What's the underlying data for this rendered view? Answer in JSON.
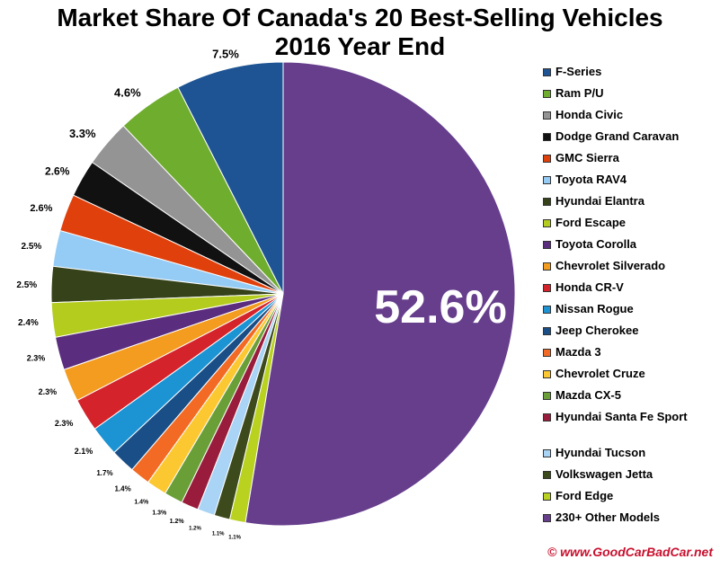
{
  "chart_data": {
    "type": "pie",
    "title": [
      "Market Share Of Canada's 20 Best-Selling Vehicles",
      "2016 Year End"
    ],
    "legend_position": "right",
    "slices": [
      {
        "name": "F-Series",
        "value": 7.5,
        "label": "7.5%",
        "color": "#1f5494"
      },
      {
        "name": "Ram P/U",
        "value": 4.6,
        "label": "4.6%",
        "color": "#6fad2e"
      },
      {
        "name": "Honda Civic",
        "value": 3.3,
        "label": "3.3%",
        "color": "#949494"
      },
      {
        "name": "Dodge Grand Caravan",
        "value": 2.6,
        "label": "2.6%",
        "color": "#111111"
      },
      {
        "name": "GMC Sierra",
        "value": 2.6,
        "label": "2.6%",
        "color": "#e0410c"
      },
      {
        "name": "Toyota RAV4",
        "value": 2.5,
        "label": "2.5%",
        "color": "#95ccf5"
      },
      {
        "name": "Hyundai Elantra",
        "value": 2.5,
        "label": "2.5%",
        "color": "#35421a"
      },
      {
        "name": "Ford Escape",
        "value": 2.4,
        "label": "2.4%",
        "color": "#b4cc1e"
      },
      {
        "name": "Toyota Corolla",
        "value": 2.3,
        "label": "2.3%",
        "color": "#5a2d7e"
      },
      {
        "name": "Chevrolet Silverado",
        "value": 2.3,
        "label": "2.3%",
        "color": "#f39c1f"
      },
      {
        "name": "Honda CR-V",
        "value": 2.3,
        "label": "2.3%",
        "color": "#d4232b"
      },
      {
        "name": "Nissan Rogue",
        "value": 2.1,
        "label": "2.1%",
        "color": "#1c93d3"
      },
      {
        "name": "Jeep Cherokee",
        "value": 1.7,
        "label": "1.7%",
        "color": "#1a4e86"
      },
      {
        "name": "Mazda 3",
        "value": 1.4,
        "label": "1.4%",
        "color": "#f26a23"
      },
      {
        "name": "Chevrolet Cruze",
        "value": 1.4,
        "label": "1.4%",
        "color": "#fcc832"
      },
      {
        "name": "Mazda CX-5",
        "value": 1.3,
        "label": "1.3%",
        "color": "#6a9f38"
      },
      {
        "name": "Hyundai Santa Fe Sport",
        "value": 1.2,
        "label": "1.2%",
        "color": "#9a1c3c"
      },
      {
        "name": "Hyundai Tucson",
        "value": 1.2,
        "label": "1.2%",
        "color": "#a9d4f5"
      },
      {
        "name": "Volkswagen Jetta",
        "value": 1.1,
        "label": "1.1%",
        "color": "#3c4a1c"
      },
      {
        "name": "Ford Edge",
        "value": 1.1,
        "label": "1.1%",
        "color": "#b9d11f"
      },
      {
        "name": "230+ Other Models",
        "value": 52.6,
        "label": "52.6%",
        "color": "#663e8c"
      }
    ]
  },
  "legend": {
    "items": [
      {
        "label": "F-Series",
        "color": "#1f5494"
      },
      {
        "label": "Ram P/U",
        "color": "#6fad2e"
      },
      {
        "label": "Honda Civic",
        "color": "#949494"
      },
      {
        "label": "Dodge Grand Caravan",
        "color": "#111111"
      },
      {
        "label": "GMC Sierra",
        "color": "#e0410c"
      },
      {
        "label": "Toyota RAV4",
        "color": "#95ccf5"
      },
      {
        "label": "Hyundai Elantra",
        "color": "#35421a"
      },
      {
        "label": "Ford Escape",
        "color": "#b4cc1e"
      },
      {
        "label": "Toyota Corolla",
        "color": "#5a2d7e"
      },
      {
        "label": "Chevrolet Silverado",
        "color": "#f39c1f"
      },
      {
        "label": "Honda CR-V",
        "color": "#d4232b"
      },
      {
        "label": "Nissan Rogue",
        "color": "#1c93d3"
      },
      {
        "label": "Jeep Cherokee",
        "color": "#1a4e86"
      },
      {
        "label": "Mazda 3",
        "color": "#f26a23"
      },
      {
        "label": "Chevrolet Cruze",
        "color": "#fcc832"
      },
      {
        "label": "Mazda CX-5",
        "color": "#6a9f38"
      },
      {
        "label": "Hyundai Santa Fe Sport",
        "color": "#9a1c3c"
      },
      {
        "label": "Hyundai Tucson",
        "color": "#a9d4f5"
      },
      {
        "label": "Volkswagen Jetta",
        "color": "#3c4a1c"
      },
      {
        "label": "Ford Edge",
        "color": "#b9d11f"
      },
      {
        "label": "230+ Other Models",
        "color": "#663e8c"
      }
    ]
  },
  "watermark": "© www.GoodCarBadCar.net"
}
